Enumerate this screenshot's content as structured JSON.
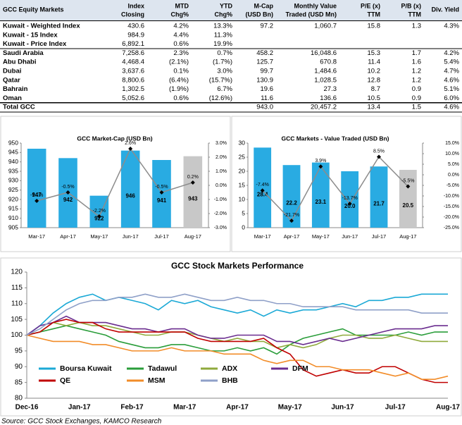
{
  "table": {
    "columns": [
      [
        "GCC Equity Markets"
      ],
      [
        "Index",
        "Closing"
      ],
      [
        "MTD",
        "Chg%"
      ],
      [
        "YTD",
        "Chg%"
      ],
      [
        "M-Cap",
        "(USD Bn)"
      ],
      [
        "Monthly Value",
        "Traded (USD Mn)"
      ],
      [
        "P/E (x)",
        "TTM"
      ],
      [
        "P/B (x)",
        "TTM"
      ],
      [
        "Div. Yield"
      ]
    ],
    "rows": [
      [
        "Kuwait - Weighted Index",
        "430.6",
        "4.2%",
        "13.3%",
        "97.2",
        "1,060.7",
        "15.8",
        "1.3",
        "4.3%"
      ],
      [
        "Kuwait - 15 Index",
        "984.9",
        "4.4%",
        "11.3%",
        null,
        null,
        null,
        null,
        null
      ],
      [
        "Kuwait - Price Index",
        "6,892.1",
        "0.6%",
        "19.9%",
        null,
        null,
        null,
        null,
        null
      ],
      [
        "Saudi Arabia",
        "7,258.6",
        "2.3%",
        "0.7%",
        "458.2",
        "16,048.6",
        "15.3",
        "1.7",
        "4.2%"
      ],
      [
        "Abu Dhabi",
        "4,468.4",
        "(2.1%)",
        "(1.7%)",
        "125.7",
        "670.8",
        "11.4",
        "1.6",
        "5.4%"
      ],
      [
        "Dubai",
        "3,637.6",
        "0.1%",
        "3.0%",
        "99.7",
        "1,484.6",
        "10.2",
        "1.2",
        "4.7%"
      ],
      [
        "Qatar",
        "8,800.6",
        "(6.4%)",
        "(15.7%)",
        "130.9",
        "1,028.5",
        "12.8",
        "1.2",
        "4.6%"
      ],
      [
        "Bahrain",
        "1,302.5",
        "(1.9%)",
        "6.7%",
        "19.6",
        "27.3",
        "8.7",
        "0.9",
        "5.1%"
      ],
      [
        "Oman",
        "5,052.6",
        "0.6%",
        "(12.6%)",
        "11.6",
        "136.6",
        "10.5",
        "0.9",
        "6.0%"
      ],
      [
        "Total GCC",
        null,
        null,
        null,
        "943.0",
        "20,457.2",
        "13.4",
        "1.5",
        "4.6%"
      ]
    ],
    "negative_color": "#c00000"
  },
  "charts": [
    {
      "type": "combo",
      "title": "GCC Market-Cap (USD Bn)",
      "categories": [
        "Mar-17",
        "Apr-17",
        "May-17",
        "Jun-17",
        "Jul-17",
        "Aug-17"
      ],
      "bars": {
        "values": [
          947,
          942,
          922,
          946,
          941,
          943
        ],
        "colors": [
          "#29abe2",
          "#29abe2",
          "#29abe2",
          "#29abe2",
          "#29abe2",
          "#c8c8c8"
        ]
      },
      "line": {
        "values": [
          -1.1,
          -0.5,
          -2.2,
          2.6,
          -0.5,
          0.2
        ],
        "value_labels": [
          "-1.1%",
          "-0.5%",
          "-2.2%",
          "2.6%",
          "-0.5%",
          "0.2%"
        ],
        "axis": "y2",
        "color": "#8c8c8c",
        "marker_color": "#000000"
      },
      "ylim": [
        905,
        950
      ],
      "yticks": [
        905,
        910,
        915,
        920,
        925,
        930,
        935,
        940,
        945,
        950
      ],
      "y2lim": [
        -3,
        3
      ],
      "y2ticks": [
        {
          "value": -3,
          "label": "-3.0%"
        },
        {
          "value": -2,
          "label": "-2.0%"
        },
        {
          "value": -1,
          "label": "-1.0%"
        },
        {
          "value": 0,
          "label": "0.0%"
        },
        {
          "value": 1,
          "label": "1.0%"
        },
        {
          "value": 2,
          "label": "2.0%"
        },
        {
          "value": 3,
          "label": "3.0%"
        }
      ]
    },
    {
      "type": "combo",
      "title": "GCC Markets - Value Traded (USD Bn)",
      "categories": [
        "Mar-17",
        "Apr-17",
        "May-17",
        "Jun-17",
        "Jul-17",
        "Aug-17"
      ],
      "bars": {
        "values": [
          28.4,
          22.2,
          23.1,
          20.0,
          21.7,
          20.5
        ],
        "value_labels": [
          "28.4",
          "22.2",
          "23.1",
          "20.0",
          "21.7",
          "20.5"
        ],
        "colors": [
          "#29abe2",
          "#29abe2",
          "#29abe2",
          "#29abe2",
          "#29abe2",
          "#c8c8c8"
        ]
      },
      "line": {
        "values": [
          -7.4,
          -21.7,
          3.9,
          -13.7,
          8.5,
          -5.5
        ],
        "value_labels": [
          "-7.4%",
          "-21.7%",
          "3.9%",
          "-13.7%",
          "8.5%",
          "-5.5%"
        ],
        "axis": "y2",
        "color": "#8c8c8c",
        "marker_color": "#000000"
      },
      "ylim": [
        0,
        30
      ],
      "yticks": [
        0,
        5,
        10,
        15,
        20,
        25,
        30
      ],
      "y2lim": [
        -25,
        15
      ],
      "y2ticks": [
        {
          "value": -25,
          "label": "-25.0%"
        },
        {
          "value": -20,
          "label": "-20.0%"
        },
        {
          "value": -15,
          "label": "-15.0%"
        },
        {
          "value": -10,
          "label": "-10.0%"
        },
        {
          "value": -5,
          "label": "-5.0%"
        },
        {
          "value": 0,
          "label": "0.0%"
        },
        {
          "value": 5,
          "label": "5.0%"
        },
        {
          "value": 10,
          "label": "10.0%"
        },
        {
          "value": 15,
          "label": "15.0%"
        }
      ]
    },
    {
      "type": "line",
      "title": "GCC Stock Markets Performance",
      "x_labels": [
        "Dec-16",
        "Jan-17",
        "Feb-17",
        "Mar-17",
        "Apr-17",
        "May-17",
        "Jun-17",
        "Jul-17",
        "Aug-17"
      ],
      "ylim": [
        80,
        120
      ],
      "yticks": [
        80,
        85,
        90,
        95,
        100,
        105,
        110,
        115,
        120
      ],
      "legend": "lower left",
      "series": [
        {
          "name": "Boursa Kuwait",
          "color": "#1ba9d6",
          "values": [
            100,
            103,
            107,
            110,
            112,
            113,
            111,
            112,
            111,
            110,
            108,
            111,
            110,
            111,
            109,
            108,
            107,
            108,
            106,
            108,
            107,
            108,
            108,
            109,
            110,
            109,
            111,
            111,
            112,
            112,
            113,
            113,
            113
          ]
        },
        {
          "name": "Tadawul",
          "color": "#2a9d3a",
          "values": [
            100,
            101,
            102,
            103,
            102,
            101,
            100,
            98,
            97,
            96,
            96,
            97,
            97,
            96,
            95,
            95,
            96,
            95,
            96,
            94,
            97,
            99,
            100,
            101,
            102,
            100,
            100,
            100,
            100,
            101,
            100,
            101,
            101
          ]
        },
        {
          "name": "ADX",
          "color": "#8faa3c",
          "values": [
            100,
            101,
            104,
            103,
            104,
            103,
            103,
            102,
            101,
            100,
            100,
            101,
            101,
            100,
            99,
            98,
            99,
            98,
            98,
            96,
            97,
            96,
            97,
            99,
            100,
            100,
            99,
            99,
            100,
            99,
            98,
            98,
            98
          ]
        },
        {
          "name": "DFM",
          "color": "#6a2d8f",
          "values": [
            100,
            103,
            104,
            106,
            104,
            104,
            104,
            103,
            102,
            102,
            101,
            102,
            102,
            100,
            99,
            99,
            100,
            100,
            100,
            98,
            98,
            97,
            98,
            99,
            98,
            99,
            100,
            101,
            102,
            102,
            102,
            103,
            103
          ]
        },
        {
          "name": "QE",
          "color": "#c00000",
          "values": [
            100,
            101,
            104,
            105,
            104,
            104,
            102,
            101,
            101,
            101,
            101,
            101,
            101,
            99,
            98,
            98,
            98,
            98,
            99,
            96,
            94,
            89,
            87,
            88,
            89,
            88,
            88,
            90,
            90,
            88,
            86,
            85,
            85
          ]
        },
        {
          "name": "MSM",
          "color": "#f28c28",
          "values": [
            100,
            99,
            98,
            98,
            98,
            97,
            97,
            96,
            95,
            95,
            95,
            96,
            95,
            95,
            95,
            94,
            94,
            94,
            92,
            91,
            92,
            92,
            90,
            90,
            89,
            89,
            89,
            88,
            87,
            88,
            86,
            86,
            87
          ]
        },
        {
          "name": "BHB",
          "color": "#8fa0c8",
          "values": [
            100,
            102,
            105,
            108,
            110,
            111,
            111,
            112,
            112,
            113,
            112,
            112,
            113,
            112,
            111,
            111,
            112,
            111,
            111,
            110,
            110,
            109,
            109,
            109,
            109,
            108,
            108,
            108,
            108,
            108,
            107,
            107,
            107
          ]
        }
      ]
    }
  ],
  "source": "Source: GCC Stock Exchanges, KAMCO Research"
}
